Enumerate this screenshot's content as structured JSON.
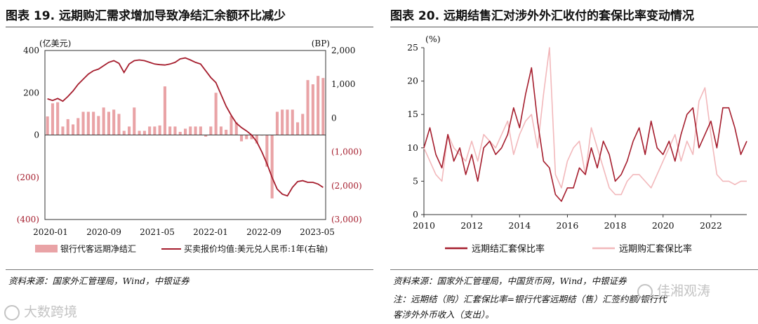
{
  "left": {
    "title": "图表 19. 远期购汇需求增加导致净结汇余额环比减少",
    "source": "资料来源：国家外汇管理局，Wind，中银证券",
    "chart_data": {
      "type": "bar",
      "x_ticks": [
        "2020-01",
        "2020-09",
        "2021-05",
        "2022-01",
        "2022-09",
        "2023-05"
      ],
      "left_axis": {
        "unit": "(亿美元)",
        "ylim": [
          -400,
          400
        ],
        "ticks": [
          400,
          200,
          0,
          -200,
          -400
        ],
        "tick_labels": [
          "400",
          "200",
          "0",
          "(200)",
          "(400)"
        ]
      },
      "right_axis": {
        "unit": "(BP)",
        "ylim": [
          -3000,
          2000
        ],
        "ticks": [
          2000,
          1000,
          0,
          -1000,
          -2000,
          -3000
        ],
        "tick_labels": [
          "2,000",
          "1,000",
          "0",
          "(1,000)",
          "(2,000)",
          "(3,000)"
        ]
      },
      "bar_color": "#e9a3a6",
      "line_color": "#a51d2d",
      "series": [
        {
          "name": "银行代客远期净结汇",
          "type": "bar",
          "axis": "left",
          "values": [
            88,
            150,
            155,
            40,
            75,
            50,
            80,
            110,
            110,
            110,
            90,
            130,
            110,
            120,
            100,
            20,
            40,
            130,
            20,
            20,
            40,
            40,
            45,
            230,
            40,
            40,
            15,
            30,
            40,
            40,
            40,
            -8,
            40,
            200,
            40,
            25,
            90,
            60,
            -30,
            -20,
            -20,
            -40,
            0,
            -150,
            -300,
            110,
            120,
            120,
            120,
            60,
            100,
            260,
            240,
            280,
            270
          ]
        },
        {
          "name": "买卖报价均值:美元兑人民币:1年(右轴)",
          "type": "line",
          "axis": "right",
          "values": [
            570,
            520,
            580,
            500,
            640,
            800,
            1000,
            1150,
            1300,
            1400,
            1450,
            1550,
            1650,
            1700,
            1620,
            1350,
            1600,
            1700,
            1720,
            1700,
            1650,
            1600,
            1580,
            1570,
            1600,
            1650,
            1750,
            1780,
            1720,
            1650,
            1600,
            1400,
            1200,
            1050,
            700,
            350,
            80,
            -150,
            -280,
            -380,
            -500,
            -700,
            -1000,
            -1350,
            -1750,
            -2100,
            -2250,
            -2300,
            -2050,
            -1880,
            -1850,
            -1900,
            -1900,
            -1950,
            -2050
          ]
        }
      ],
      "legend": [
        "银行代客远期净结汇",
        "买卖报价均值:美元兑人民币:1年(右轴)"
      ]
    }
  },
  "right": {
    "title": "图表 20. 远期结售汇对涉外外汇收付的套保比率变动情况",
    "source": "资料来源：国家外汇管理局，中国货币网，Wind，中银证券",
    "note_line1": "注：远期结（购）汇套保比率=银行代客远期结（售）汇签约额/银行代",
    "note_line2": "客涉外外币收入（支出）。",
    "chart_data": {
      "type": "line",
      "unit": "(%)",
      "ylim": [
        0,
        25
      ],
      "y_ticks": [
        0,
        5,
        10,
        15,
        20,
        25
      ],
      "x_range": [
        2010,
        2023.5
      ],
      "x_ticks": [
        2010,
        2012,
        2014,
        2016,
        2018,
        2020,
        2022
      ],
      "series": [
        {
          "name": "远期结汇套保比率",
          "color": "#a51d2d",
          "x_start": 2010,
          "x_step": 0.25,
          "values": [
            10,
            13,
            9,
            7,
            12,
            8,
            10,
            6,
            9,
            5,
            10,
            11,
            9,
            10,
            12,
            16,
            13,
            18,
            22,
            14,
            8,
            7,
            3,
            2,
            4,
            4,
            7,
            6,
            10,
            7,
            11,
            9,
            5,
            6,
            8,
            11,
            13,
            9,
            14,
            10,
            9,
            11,
            8,
            12,
            15,
            16,
            10,
            12,
            14,
            10,
            16,
            16,
            13,
            9,
            11
          ]
        },
        {
          "name": "远期购汇套保比率",
          "color": "#f2b8bb",
          "x_start": 2010,
          "x_step": 0.25,
          "values": [
            10,
            8,
            6,
            5,
            12,
            10,
            9,
            8,
            11,
            8,
            12,
            11,
            10,
            12,
            14,
            9,
            12,
            14,
            15,
            10,
            18,
            25,
            6,
            4,
            8,
            10,
            11,
            6,
            13,
            10,
            7,
            4,
            3,
            3,
            5,
            6,
            6,
            5,
            4,
            6,
            8,
            10,
            12,
            8,
            11,
            9,
            17,
            19,
            12,
            6,
            5,
            5,
            4.5,
            5,
            5
          ]
        }
      ],
      "legend": [
        "远期结汇套保比率",
        "远期购汇套保比率"
      ]
    }
  },
  "watermarks": {
    "left_brand": "大数跨境",
    "right_brand": "佳湘观涛"
  }
}
